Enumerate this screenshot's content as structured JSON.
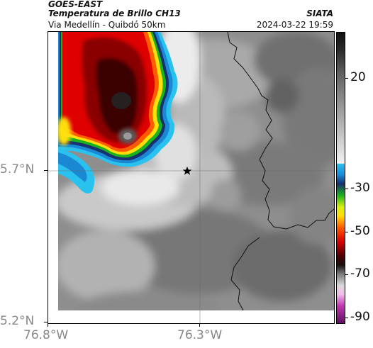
{
  "header": {
    "satellite": "GOES-EAST",
    "product": "Temperatura de Brillo CH13",
    "region": "Via Medellín - Quibdó 50km",
    "source": "SIATA",
    "datetime": "2024-03-22 19:59"
  },
  "axes": {
    "x_ticks": [
      "76.8°W",
      "76.3°W"
    ],
    "y_ticks": [
      "5.7°N",
      "5.2°N"
    ]
  },
  "colorbar": {
    "labels": [
      "20",
      "-30",
      "-50",
      "-70",
      "-90"
    ],
    "colors": [
      "#101010",
      "#c8c8c8",
      "#29c1ee",
      "#17306e",
      "#1bb21b",
      "#ffde0c",
      "#ff5c00",
      "#d40000",
      "#4a0000",
      "#c238b2"
    ]
  },
  "map": {
    "marker": "star-marker",
    "features": [
      "gridlines",
      "department-boundary",
      "cold-cloud-top"
    ]
  }
}
